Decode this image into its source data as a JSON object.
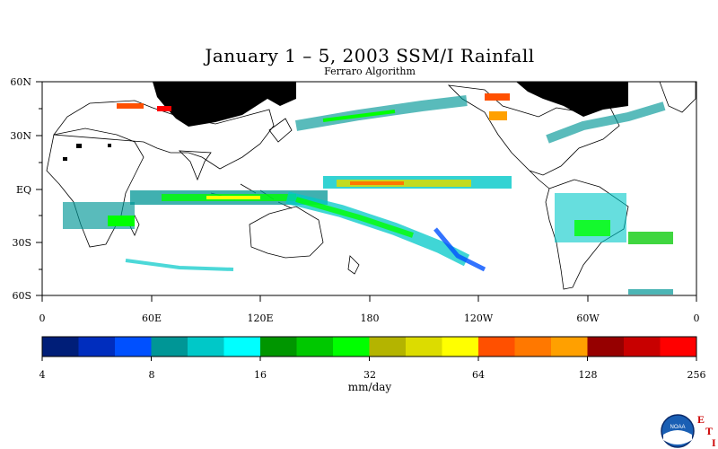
{
  "header": {
    "title": "January 1 – 5, 2003 SSM/I Rainfall",
    "subtitle": "Ferraro Algorithm"
  },
  "map": {
    "lat_labels": [
      "60N",
      "30N",
      "EQ",
      "30S",
      "60S"
    ],
    "lon_labels": [
      "0",
      "60E",
      "120E",
      "180",
      "120W",
      "60W",
      "0"
    ],
    "land_color": "#000000",
    "background": "#ffffff"
  },
  "colorbar": {
    "unit": "mm/day",
    "tick_labels": [
      "4",
      "8",
      "16",
      "32",
      "64",
      "128",
      "256"
    ],
    "colors": [
      "#001e78",
      "#002dbe",
      "#0050ff",
      "#009696",
      "#00c8c8",
      "#00ffff",
      "#009600",
      "#00c800",
      "#00ff00",
      "#b4b400",
      "#dcdc00",
      "#ffff00",
      "#ff5000",
      "#ff7800",
      "#ffa000",
      "#960000",
      "#c80000",
      "#ff0000"
    ]
  },
  "logo": {
    "org": "NOAA",
    "letters": [
      "E",
      "T",
      "I"
    ]
  }
}
